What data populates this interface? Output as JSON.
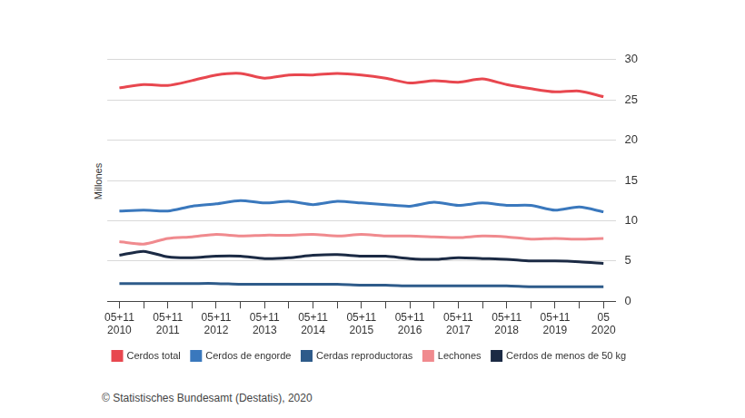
{
  "chart_data": {
    "type": "line",
    "y_label": "Millones",
    "source": "© Statistisches Bundesamt (Destatis), 2020",
    "categories": [
      "05+11 2010",
      null,
      "05+11 2011",
      null,
      "05+11 2012",
      null,
      "05+11 2013",
      null,
      "05+11 2014",
      null,
      "05+11 2015",
      null,
      "05+11 2016",
      null,
      "05+11 2017",
      null,
      "05+11 2018",
      null,
      "05+11 2019",
      null,
      "05 2020"
    ],
    "series": [
      {
        "name": "Cerdos total",
        "color": "#e8474f",
        "values": [
          26.5,
          26.9,
          26.8,
          27.4,
          28.1,
          28.3,
          27.7,
          28.1,
          28.1,
          28.3,
          28.1,
          27.7,
          27.1,
          27.4,
          27.2,
          27.6,
          26.9,
          26.4,
          26.0,
          26.1,
          25.4
        ]
      },
      {
        "name": "Cerdos de engorde",
        "color": "#3a78bd",
        "values": [
          11.2,
          11.3,
          11.2,
          11.8,
          12.1,
          12.5,
          12.2,
          12.4,
          12.0,
          12.4,
          12.2,
          12.0,
          11.8,
          12.3,
          11.9,
          12.2,
          11.9,
          11.9,
          11.3,
          11.7,
          11.1
        ]
      },
      {
        "name": "Cerdas reproductoras",
        "color": "#2e5b8a",
        "values": [
          2.2,
          2.2,
          2.2,
          2.2,
          2.2,
          2.1,
          2.1,
          2.1,
          2.1,
          2.1,
          2.0,
          2.0,
          1.9,
          1.9,
          1.9,
          1.9,
          1.9,
          1.8,
          1.8,
          1.8,
          1.8
        ]
      },
      {
        "name": "Lechones",
        "color": "#f08a8e",
        "values": [
          7.4,
          7.1,
          7.8,
          8.0,
          8.3,
          8.1,
          8.2,
          8.2,
          8.3,
          8.1,
          8.3,
          8.1,
          8.1,
          8.0,
          7.9,
          8.1,
          8.0,
          7.7,
          7.8,
          7.7,
          7.8
        ]
      },
      {
        "name": "Cerdos de menos de 50 kg",
        "color": "#1b2a44",
        "values": [
          5.7,
          6.2,
          5.5,
          5.4,
          5.6,
          5.6,
          5.3,
          5.4,
          5.7,
          5.8,
          5.6,
          5.6,
          5.3,
          5.2,
          5.4,
          5.3,
          5.2,
          5.0,
          5.0,
          4.9,
          4.7
        ]
      }
    ],
    "ylim": [
      0,
      30
    ],
    "yticks": [
      0,
      5,
      10,
      15,
      20,
      25,
      30
    ],
    "grid": true,
    "legend": "bottom"
  }
}
